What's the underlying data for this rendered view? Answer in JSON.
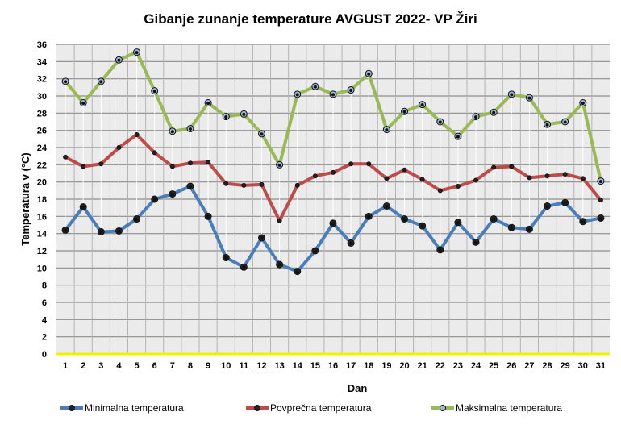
{
  "chart_data": {
    "type": "line",
    "title": "Gibanje zunanje  temperature AVGUST 2022- VP Žiri",
    "xlabel": "Dan",
    "ylabel": "Temperatura v (°C)",
    "ylim": [
      0,
      36
    ],
    "ytick_step": 2,
    "grid": true,
    "legend_position": "bottom",
    "categories": [
      "1",
      "2",
      "3",
      "4",
      "5",
      "6",
      "7",
      "8",
      "9",
      "10",
      "11",
      "12",
      "13",
      "14",
      "15",
      "16",
      "17",
      "18",
      "19",
      "20",
      "21",
      "22",
      "23",
      "24",
      "25",
      "26",
      "27",
      "28",
      "29",
      "30",
      "31"
    ],
    "series": [
      {
        "name": "Minimalna temperatura",
        "color": "#4a7ebb",
        "values": [
          14.4,
          17.1,
          14.2,
          14.3,
          15.7,
          18.0,
          18.6,
          19.5,
          16.0,
          11.2,
          10.1,
          13.5,
          10.4,
          9.6,
          12.0,
          15.2,
          12.9,
          16.0,
          17.2,
          15.7,
          14.9,
          12.1,
          15.3,
          13.0,
          15.7,
          14.7,
          14.5,
          17.2,
          17.6,
          15.4,
          15.8
        ]
      },
      {
        "name": "Povprečna temperatura",
        "color": "#be4b48",
        "values": [
          22.9,
          21.8,
          22.1,
          24.0,
          25.5,
          23.4,
          21.8,
          22.2,
          22.3,
          19.8,
          19.6,
          19.7,
          15.5,
          19.6,
          20.7,
          21.1,
          22.1,
          22.1,
          20.4,
          21.4,
          20.3,
          19.0,
          19.5,
          20.2,
          21.7,
          21.8,
          20.5,
          20.7,
          20.9,
          20.4,
          17.9
        ]
      },
      {
        "name": "Maksimalna temperatura",
        "color": "#98b954",
        "values": [
          31.7,
          29.2,
          31.7,
          34.2,
          35.1,
          30.6,
          25.9,
          26.2,
          29.2,
          27.6,
          27.9,
          25.6,
          22.0,
          30.2,
          31.1,
          30.2,
          30.7,
          32.6,
          26.1,
          28.2,
          29.0,
          27.0,
          25.3,
          27.6,
          28.1,
          30.2,
          29.8,
          26.7,
          27.0,
          29.2,
          20.1
        ]
      }
    ]
  }
}
